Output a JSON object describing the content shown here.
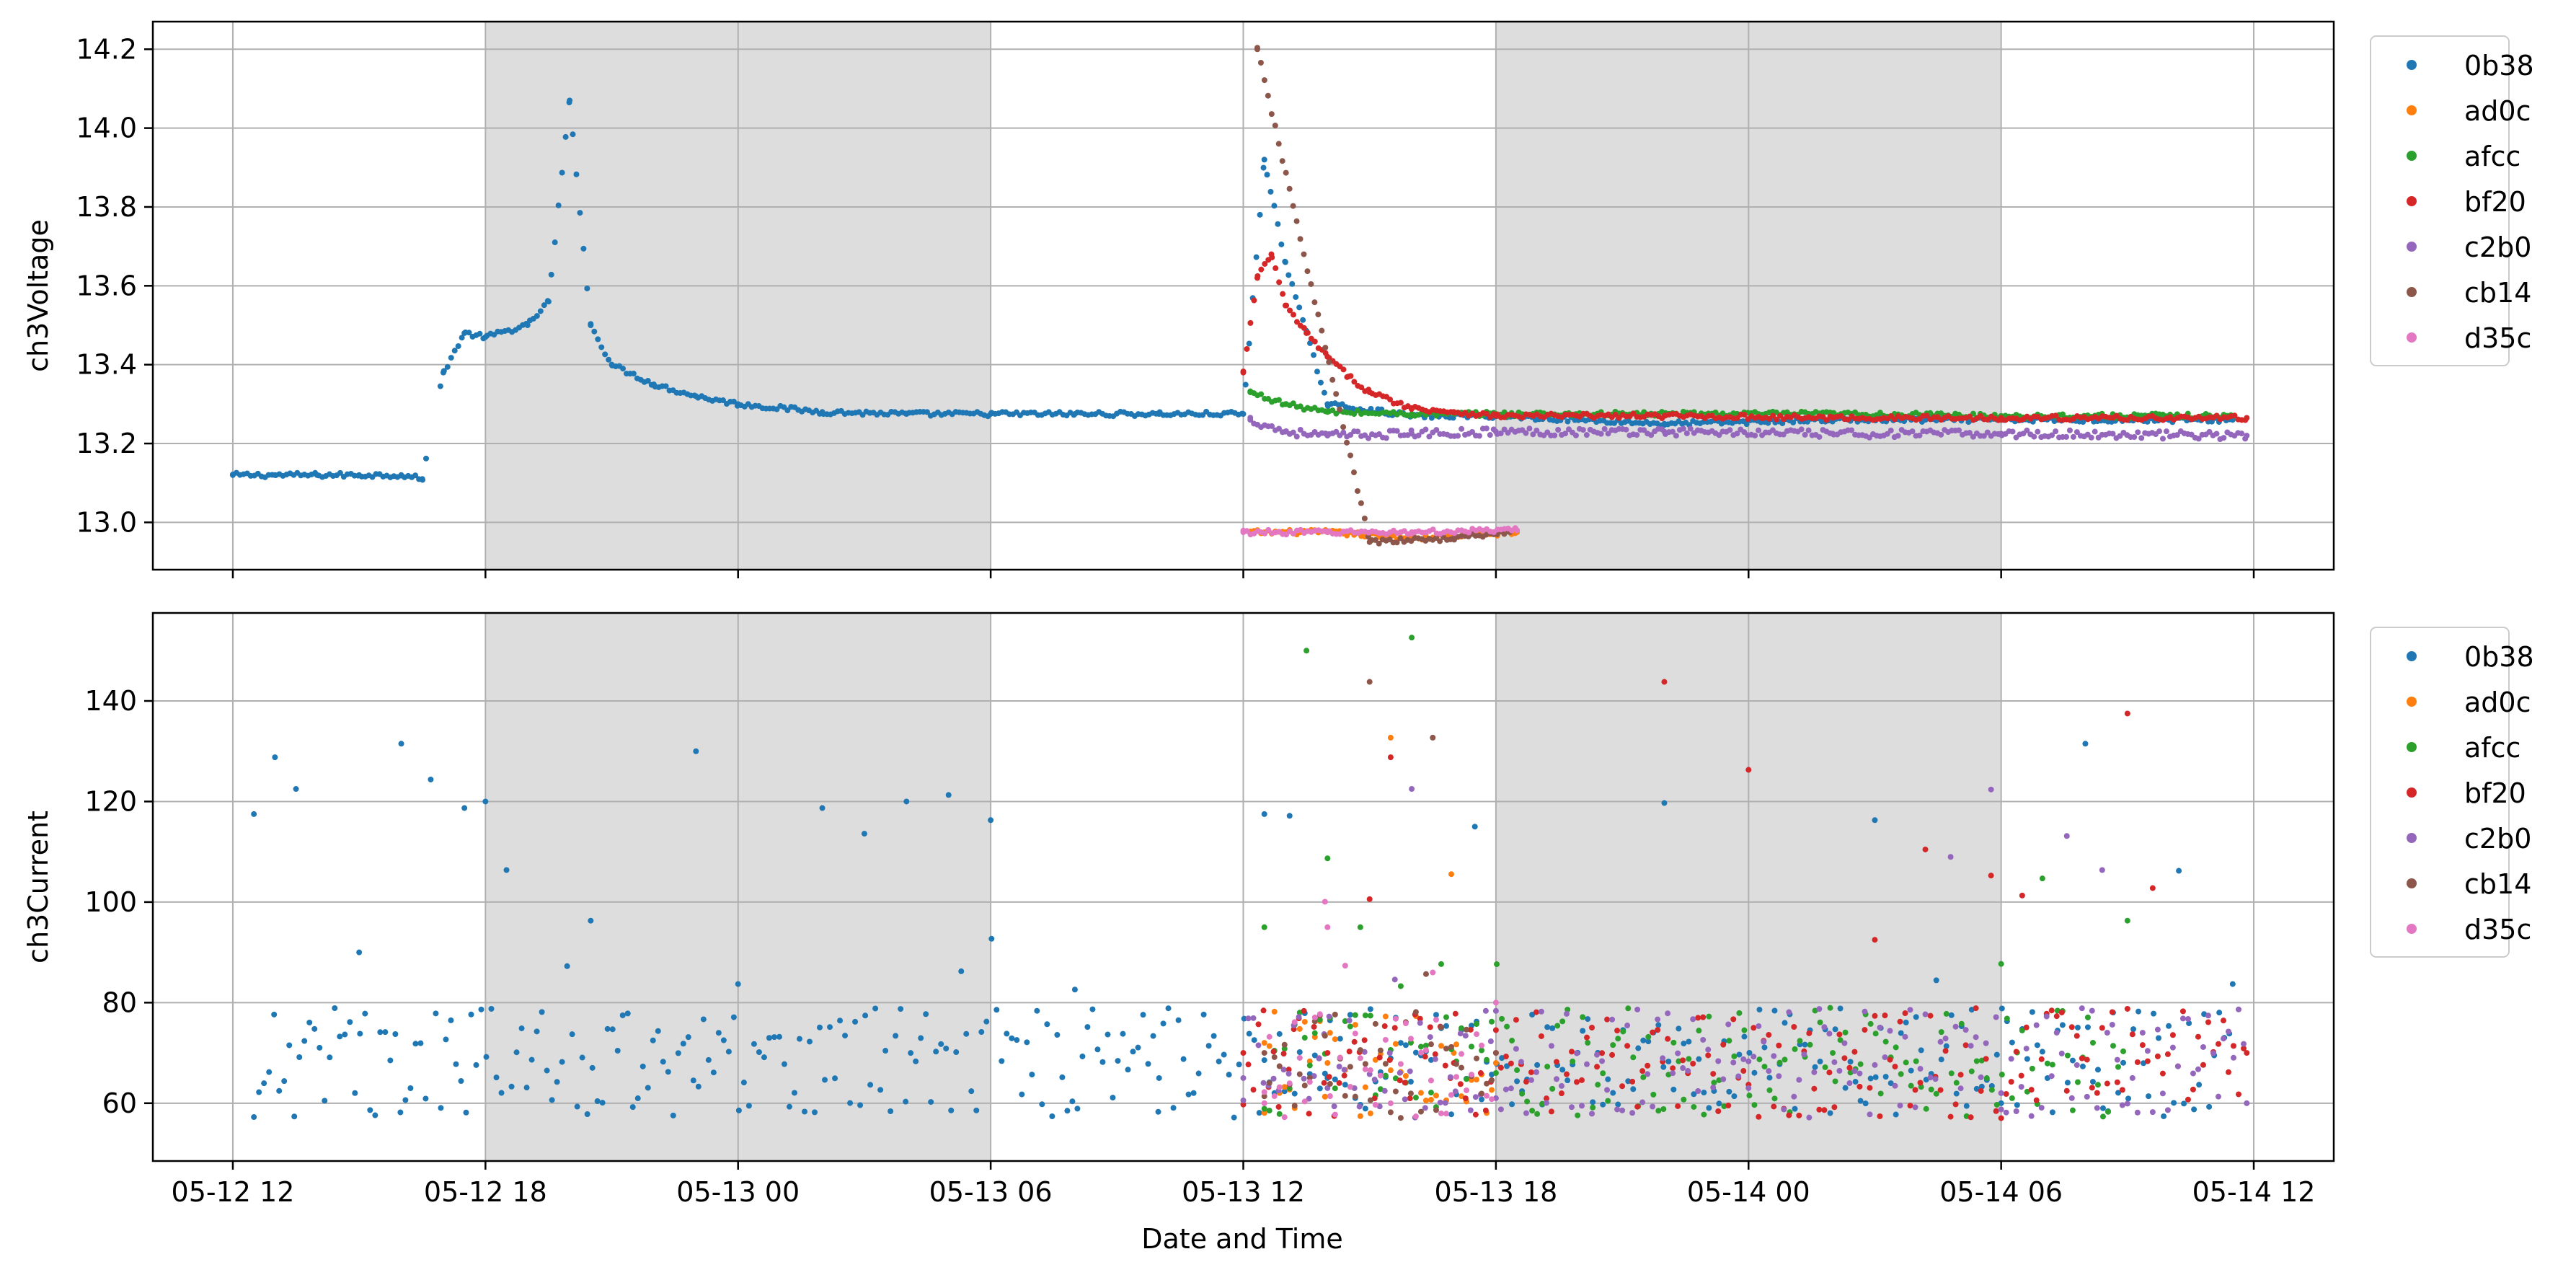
{
  "colors": {
    "0b38": "#1f77b4",
    "ad0c": "#ff7f0e",
    "afcc": "#2ca02c",
    "bf20": "#d62728",
    "c2b0": "#9467bd",
    "cb14": "#8c564b",
    "d35c": "#e377c2",
    "night_shading": "#dddddd",
    "grid": "#b0b0b0"
  },
  "chart_data": [
    {
      "type": "scatter",
      "xlabel": "",
      "ylabel": "ch3Voltage",
      "xlim": [
        "2025-05-12 10:06",
        "2025-05-14 13:54"
      ],
      "ylim": [
        12.88,
        14.27
      ],
      "grid": true,
      "legend_position": "outside-right",
      "x_ticks": [
        "05-12 12",
        "05-12 18",
        "05-13 00",
        "05-13 06",
        "05-13 12",
        "05-13 18",
        "05-14 00",
        "05-14 06",
        "05-14 12"
      ],
      "y_ticks": [
        "13.0",
        "13.2",
        "13.4",
        "13.6",
        "13.8",
        "14.0",
        "14.2"
      ],
      "night_shading": [
        [
          "05-12 18:00",
          "05-13 06:00"
        ],
        [
          "05-13 18:00",
          "05-14 06:00"
        ]
      ],
      "series": [
        {
          "name": "0b38",
          "x": [
            "05-12 12:00",
            "05-12 13:00",
            "05-12 14:00",
            "05-12 15:00",
            "05-12 16:00",
            "05-12 16:30",
            "05-12 17:00",
            "05-12 17:30",
            "05-12 18:00",
            "05-12 19:00",
            "05-12 19:30",
            "05-12 20:00",
            "05-12 20:30",
            "05-12 21:00",
            "05-12 22:00",
            "05-12 23:00",
            "05-13 00:00",
            "05-13 02:00",
            "05-13 04:00",
            "05-13 06:00",
            "05-13 08:00",
            "05-13 10:00",
            "05-13 12:00",
            "05-13 12:30",
            "05-13 13:00",
            "05-13 14:00",
            "05-13 16:00",
            "05-13 18:00",
            "05-13 22:00",
            "05-14 02:00",
            "05-14 06:00",
            "05-14 11:30"
          ],
          "y": [
            13.12,
            13.12,
            13.12,
            13.12,
            13.12,
            13.11,
            13.38,
            13.48,
            13.47,
            13.5,
            13.56,
            14.07,
            13.5,
            13.4,
            13.35,
            13.32,
            13.3,
            13.28,
            13.275,
            13.275,
            13.275,
            13.275,
            13.275,
            13.92,
            13.66,
            13.3,
            13.27,
            13.27,
            13.25,
            13.26,
            13.26,
            13.26
          ]
        },
        {
          "name": "ad0c",
          "x": [
            "05-13 12:10",
            "05-13 14:00",
            "05-13 16:00",
            "05-13 18:30"
          ],
          "y": [
            12.975,
            12.975,
            12.96,
            12.975
          ]
        },
        {
          "name": "afcc",
          "x": [
            "05-13 12:10",
            "05-13 13:00",
            "05-13 14:00",
            "05-13 16:00",
            "05-13 18:00",
            "05-13 22:00",
            "05-14 02:00",
            "05-14 06:00",
            "05-14 11:30"
          ],
          "y": [
            13.33,
            13.3,
            13.28,
            13.275,
            13.275,
            13.275,
            13.275,
            13.27,
            13.27
          ]
        },
        {
          "name": "bf20",
          "x": [
            "05-13 12:00",
            "05-13 12:20",
            "05-13 12:40",
            "05-13 13:00",
            "05-13 13:30",
            "05-13 14:00",
            "05-13 14:30",
            "05-13 15:00",
            "05-13 16:00",
            "05-13 17:00",
            "05-13 18:00",
            "05-13 22:00",
            "05-14 02:00",
            "05-14 06:00",
            "05-14 10:00",
            "05-14 11:50"
          ],
          "y": [
            13.38,
            13.62,
            13.68,
            13.55,
            13.48,
            13.42,
            13.37,
            13.33,
            13.29,
            13.28,
            13.27,
            13.27,
            13.265,
            13.265,
            13.265,
            13.265
          ]
        },
        {
          "name": "c2b0",
          "x": [
            "05-13 12:10",
            "05-13 13:00",
            "05-13 14:00",
            "05-13 16:00",
            "05-13 18:00",
            "05-13 22:00",
            "05-14 02:00",
            "05-14 06:00",
            "05-14 11:50"
          ],
          "y": [
            13.26,
            13.23,
            13.22,
            13.225,
            13.23,
            13.23,
            13.225,
            13.225,
            13.22
          ]
        },
        {
          "name": "cb14",
          "x": [
            "05-13 12:20",
            "05-13 15:00",
            "05-13 17:00",
            "05-13 18:20"
          ],
          "y": [
            14.2,
            12.95,
            12.96,
            12.975
          ]
        },
        {
          "name": "d35c",
          "x": [
            "05-13 12:00",
            "05-13 14:00",
            "05-13 16:00",
            "05-13 18:30"
          ],
          "y": [
            12.975,
            12.975,
            12.975,
            12.98
          ]
        }
      ]
    },
    {
      "type": "scatter",
      "xlabel": "Date and Time",
      "ylabel": "ch3Current",
      "xlim": [
        "2025-05-12 10:06",
        "2025-05-14 13:54"
      ],
      "ylim": [
        48.5,
        157.5
      ],
      "grid": true,
      "legend_position": "outside-right",
      "x_ticks": [
        "05-12 12",
        "05-12 18",
        "05-13 00",
        "05-13 06",
        "05-13 12",
        "05-13 18",
        "05-14 00",
        "05-14 06",
        "05-14 12"
      ],
      "y_ticks": [
        "60",
        "80",
        "100",
        "120",
        "140"
      ],
      "night_shading": [
        [
          "05-12 18:00",
          "05-13 06:00"
        ],
        [
          "05-13 18:00",
          "05-14 06:00"
        ]
      ],
      "series": [
        {
          "name": "0b38",
          "x": [
            "05-12 12:30",
            "05-12 13:00",
            "05-12 13:30",
            "05-12 15:00",
            "05-12 16:00",
            "05-12 17:30",
            "05-12 18:00",
            "05-12 20:30",
            "05-12 23:00",
            "05-13 00:00",
            "05-13 02:00",
            "05-13 03:00",
            "05-13 04:00",
            "05-13 05:00",
            "05-13 06:00",
            "05-13 08:00",
            "05-13 10:00",
            "05-13 12:30",
            "05-13 14:00",
            "05-13 17:30",
            "05-13 22:00",
            "05-14 03:00",
            "05-14 06:00",
            "05-14 08:00",
            "05-14 11:30"
          ],
          "y": [
            117.5,
            128.8,
            122.5,
            90,
            131.5,
            118.7,
            120,
            96.3,
            130,
            83.7,
            118.7,
            113.6,
            120,
            121.3,
            116.3,
            82.6,
            65,
            117.5,
            65,
            115,
            119.7,
            116.3,
            60,
            131.5,
            83.7
          ]
        },
        {
          "name": "ad0c",
          "x": [
            "05-13 12:30",
            "05-13 14:00",
            "05-13 15:30",
            "05-13 17:00",
            "05-13 18:00"
          ],
          "y": [
            72,
            68,
            132.7,
            70,
            68
          ]
        },
        {
          "name": "afcc",
          "x": [
            "05-13 12:30",
            "05-13 13:30",
            "05-13 14:00",
            "05-13 16:00",
            "05-13 18:00",
            "05-14 02:00",
            "05-14 06:00",
            "05-14 09:00"
          ],
          "y": [
            95,
            150,
            108.7,
            152.6,
            66,
            70,
            87.7,
            96.3
          ]
        },
        {
          "name": "bf20",
          "x": [
            "05-13 12:00",
            "05-13 14:00",
            "05-13 15:30",
            "05-13 17:00",
            "05-13 18:00",
            "05-13 22:00",
            "05-14 00:00",
            "05-14 03:00",
            "05-14 06:30",
            "05-14 09:00",
            "05-14 11:50"
          ],
          "y": [
            70,
            70,
            128.8,
            68,
            70,
            143.8,
            126.3,
            92.5,
            101.3,
            137.5,
            70
          ]
        },
        {
          "name": "c2b0",
          "x": [
            "05-13 12:00",
            "05-13 14:00",
            "05-13 16:00",
            "05-13 18:00",
            "05-14 00:00",
            "05-14 06:00",
            "05-14 11:50"
          ],
          "y": [
            65,
            63,
            122.5,
            61,
            63,
            62,
            60
          ]
        },
        {
          "name": "cb14",
          "x": [
            "05-13 12:30",
            "05-13 15:00",
            "05-13 16:30",
            "05-13 18:00"
          ],
          "y": [
            70,
            143.8,
            132.7,
            70
          ]
        },
        {
          "name": "d35c",
          "x": [
            "05-13 12:30",
            "05-13 14:00",
            "05-13 16:30",
            "05-13 18:00"
          ],
          "y": [
            60,
            95,
            86,
            80
          ]
        }
      ]
    }
  ]
}
